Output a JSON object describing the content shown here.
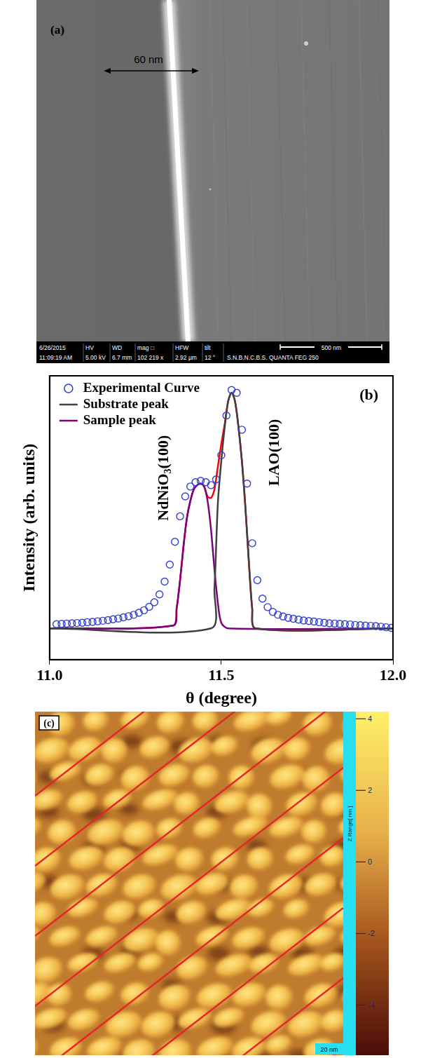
{
  "panel_a": {
    "label": "(a)",
    "measurement": "60 nm",
    "info_bar": [
      {
        "label": "6/26/2015",
        "value": "11:09:19 AM"
      },
      {
        "label": "HV",
        "value": "5.00 kV"
      },
      {
        "label": "WD",
        "value": "6.7 mm"
      },
      {
        "label": "mag □",
        "value": "102 219 x"
      },
      {
        "label": "HFW",
        "value": "2.92 µm"
      },
      {
        "label": "tilt",
        "value": "12 °"
      }
    ],
    "scale_bar": "500 nm",
    "instrument": "S.N.B.N.C.B.S. QUANTA FEG 250"
  },
  "chart_data": {
    "type": "line",
    "x_label": "θ (degree)",
    "y_label": "Intensity (arb. units)",
    "annotations": [
      {
        "text": "(b)"
      },
      {
        "text": "NdNiO3(100)"
      },
      {
        "text": "LAO(100)"
      }
    ],
    "xlim": [
      11,
      12
    ],
    "xticks": [
      {
        "value": 11,
        "label": "11.0"
      },
      11.5,
      {
        "value": 12,
        "label": "12.0"
      }
    ],
    "ylim": [
      0,
      10
    ],
    "tick_labels": "x",
    "grid": false,
    "legend": "upper left",
    "series": [
      {
        "name": "Experimental Curve",
        "color": "#2f3fd0",
        "marker": "open circle",
        "line_style": "none",
        "x": [
          11.02,
          11.035,
          11.05,
          11.065,
          11.08,
          11.095,
          11.11,
          11.125,
          11.14,
          11.155,
          11.17,
          11.185,
          11.2,
          11.215,
          11.23,
          11.245,
          11.26,
          11.275,
          11.29,
          11.305,
          11.32,
          11.335,
          11.35,
          11.365,
          11.38,
          11.395,
          11.41,
          11.425,
          11.44,
          11.455,
          11.47,
          11.485,
          11.5,
          11.515,
          11.53,
          11.545,
          11.56,
          11.575,
          11.59,
          11.605,
          11.62,
          11.635,
          11.65,
          11.665,
          11.68,
          11.695,
          11.71,
          11.725,
          11.74,
          11.755,
          11.77,
          11.785,
          11.8,
          11.815,
          11.83,
          11.845,
          11.86,
          11.875,
          11.89,
          11.905,
          11.92,
          11.935,
          11.95,
          11.965,
          11.98,
          11.995
        ],
        "values": [
          1.25,
          1.26,
          1.27,
          1.28,
          1.29,
          1.3,
          1.32,
          1.33,
          1.35,
          1.37,
          1.39,
          1.42,
          1.45,
          1.49,
          1.53,
          1.58,
          1.65,
          1.74,
          1.86,
          2.02,
          2.3,
          2.75,
          3.35,
          4.15,
          5.05,
          5.75,
          6.1,
          6.25,
          6.3,
          6.25,
          6.15,
          6.35,
          7.2,
          8.6,
          9.5,
          9.4,
          8.1,
          6.2,
          4.1,
          2.8,
          2.15,
          1.85,
          1.68,
          1.58,
          1.52,
          1.47,
          1.44,
          1.41,
          1.38,
          1.36,
          1.34,
          1.32,
          1.3,
          1.28,
          1.27,
          1.26,
          1.25,
          1.24,
          1.22,
          1.21,
          1.2,
          1.19,
          1.18,
          1.16,
          1.14,
          1.12
        ]
      },
      {
        "name": "Substrate peak",
        "color": "#404040",
        "line_style": "solid",
        "x": [
          11,
          11.47,
          11.48,
          11.49,
          11.5,
          11.51,
          11.52,
          11.53,
          11.54,
          11.55,
          11.56,
          11.57,
          11.58,
          11.59,
          11.6,
          12
        ],
        "values": [
          1.1,
          1.1,
          2.5,
          5.5,
          7.0,
          8.2,
          9.1,
          9.4,
          9.1,
          8.2,
          7.0,
          5.4,
          3.5,
          1.8,
          1.1,
          1.1
        ]
      },
      {
        "name": "Sample peak",
        "color": "#800080",
        "line_style": "solid",
        "x": [
          11,
          11.36,
          11.37,
          11.38,
          11.39,
          11.4,
          11.41,
          11.42,
          11.43,
          11.44,
          11.45,
          11.46,
          11.47,
          11.48,
          11.49,
          11.5,
          11.52,
          12
        ],
        "values": [
          1.1,
          1.2,
          1.8,
          2.8,
          4.0,
          5.0,
          5.6,
          6.0,
          6.15,
          6.2,
          6.1,
          5.6,
          4.6,
          3.2,
          2.0,
          1.3,
          1.1,
          1.1
        ]
      },
      {
        "color": "#ff0000",
        "line_style": "solid",
        "x": [
          11,
          11.36,
          11.37,
          11.38,
          11.39,
          11.4,
          11.41,
          11.42,
          11.43,
          11.44,
          11.45,
          11.46,
          11.47,
          11.48,
          11.49,
          11.5,
          11.51,
          11.52,
          11.53,
          11.54,
          11.55,
          11.56,
          11.57,
          11.58,
          11.59,
          11.6,
          12
        ],
        "values": [
          1.1,
          1.2,
          1.8,
          2.8,
          4.0,
          5.0,
          5.6,
          6.0,
          6.15,
          6.2,
          6.1,
          5.75,
          5.7,
          6.0,
          6.8,
          7.6,
          8.3,
          9.1,
          9.4,
          9.1,
          8.2,
          7.0,
          5.4,
          3.5,
          1.8,
          1.1,
          1.1
        ]
      }
    ]
  },
  "panel_c": {
    "label": "(c)",
    "scale_bar": "20 nm",
    "colorbar": {
      "label": "Z Range[ nm ]",
      "range": [
        -5.4,
        4.2
      ],
      "ticks": [
        4,
        2,
        0,
        -2,
        -4
      ]
    }
  }
}
